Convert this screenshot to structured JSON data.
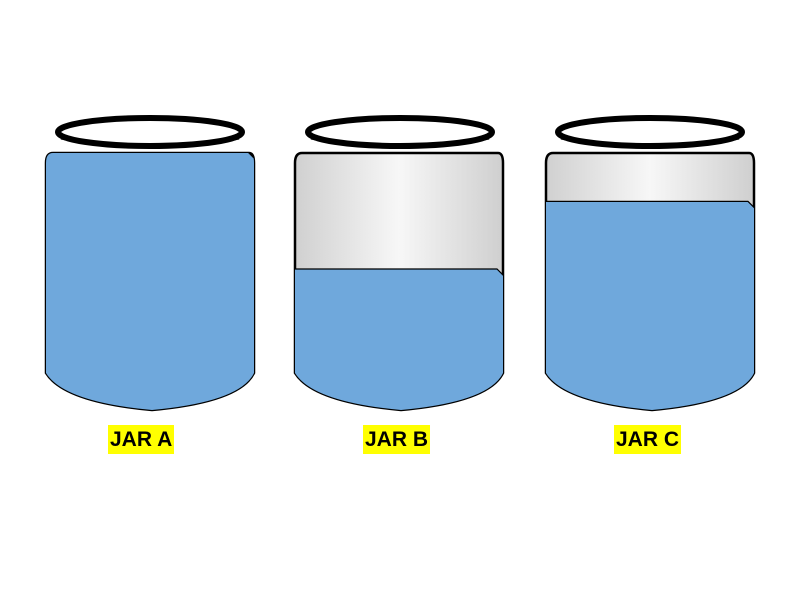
{
  "jars": [
    {
      "label": "JAR A",
      "fill_level": 1.0
    },
    {
      "label": "JAR B",
      "fill_level": 0.55
    },
    {
      "label": "JAR C",
      "fill_level": 0.81
    }
  ],
  "colors": {
    "water": "#6fa8dc",
    "jar_outline": "#000000",
    "label_background": "#ffff00"
  }
}
